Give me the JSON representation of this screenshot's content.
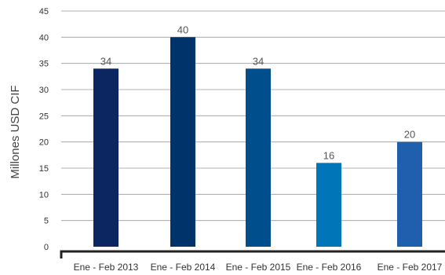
{
  "chart_data": {
    "type": "bar",
    "categories": [
      "Ene - Feb 2013",
      "Ene - Feb 2014",
      "Ene - Feb 2015",
      "Ene - Feb 2016",
      "Ene - Feb 2017"
    ],
    "values": [
      34,
      40,
      34,
      16,
      20
    ],
    "data_labels": [
      "34",
      "40",
      "34",
      "16",
      "20"
    ],
    "colors": [
      "#0b2660",
      "#003369",
      "#004f8c",
      "#0076b9",
      "#1f5fae"
    ],
    "title": "",
    "xlabel": "",
    "ylabel": "Millones USD CIF",
    "ylim": [
      0,
      45
    ],
    "yticks": [
      0,
      5,
      10,
      15,
      20,
      25,
      30,
      35,
      40,
      45
    ],
    "grid": true,
    "legend": "none"
  }
}
